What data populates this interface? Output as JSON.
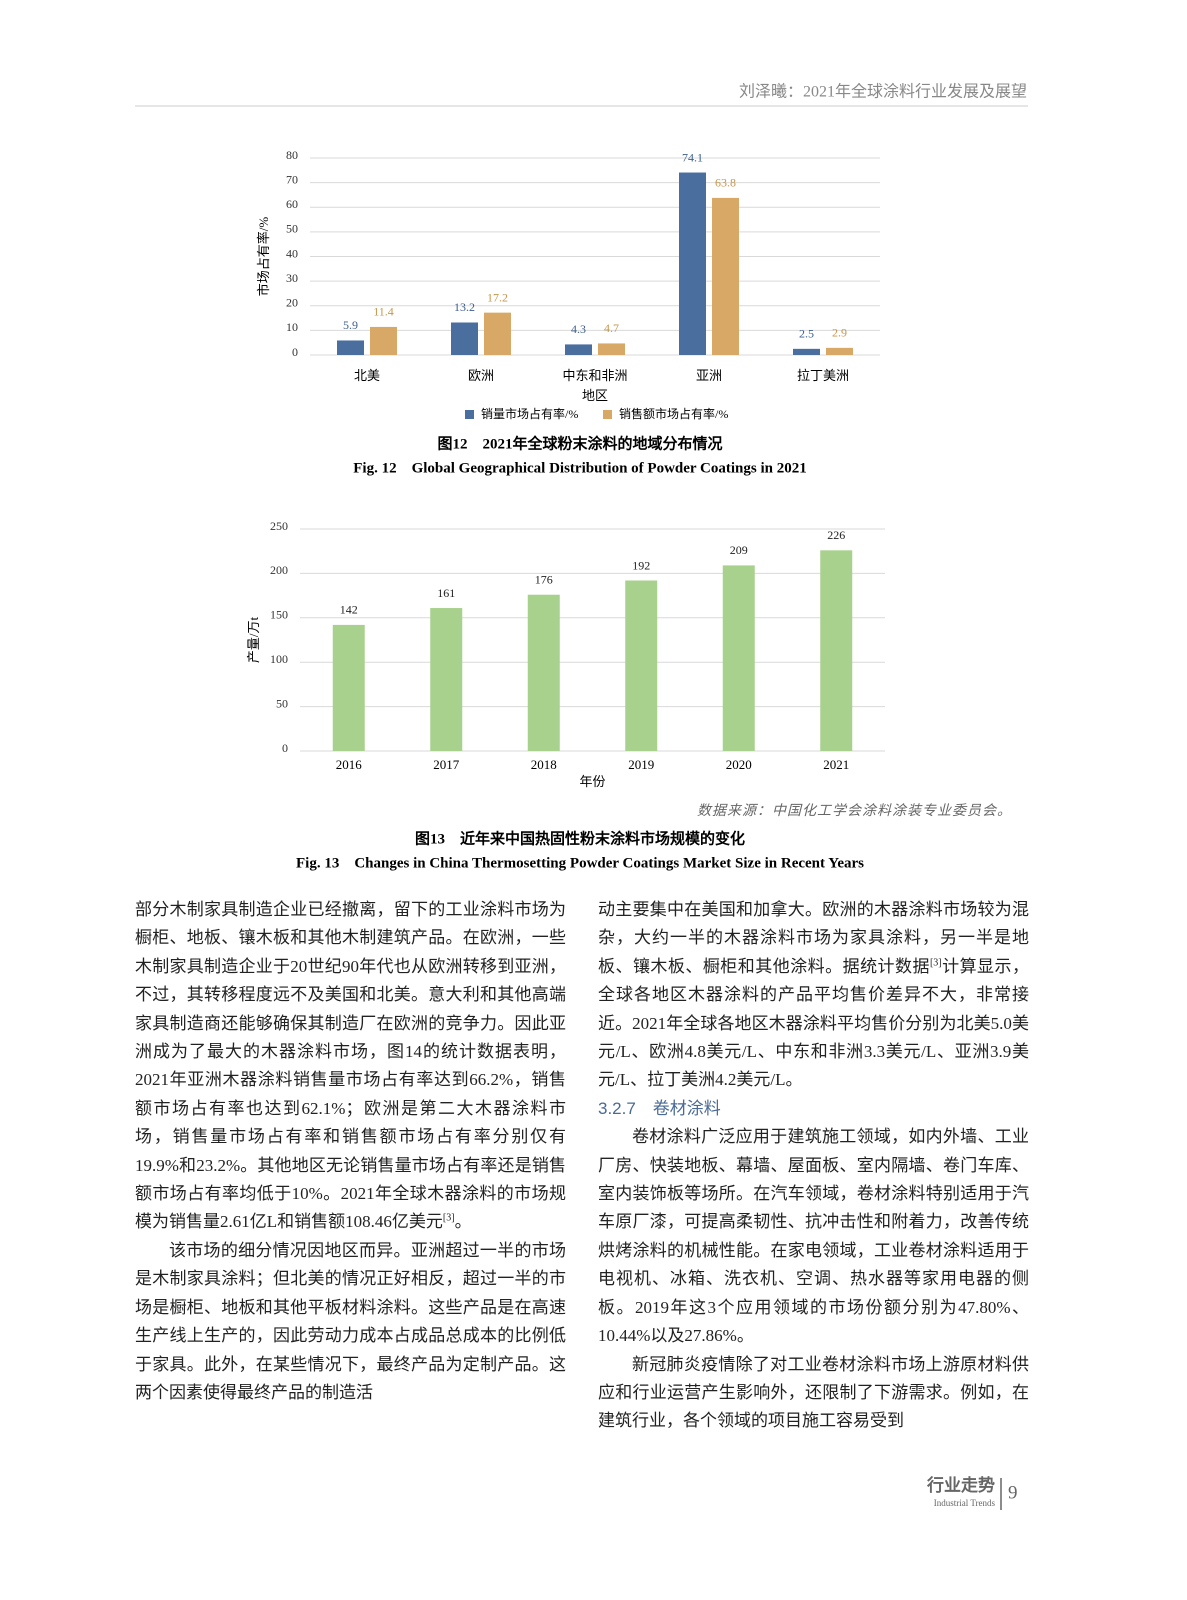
{
  "header": {
    "title": "刘泽曦：2021年全球涂料行业发展及展望"
  },
  "chart_data": [
    {
      "type": "bar",
      "title": "图12　2021年全球粉末涂料的地域分布情况",
      "subtitle": "Fig. 12　Global Geographical Distribution of Powder Coatings in 2021",
      "y_label": "市场占有率/%",
      "x_label": "地区",
      "categories": [
        "北美",
        "欧洲",
        "中东和非洲",
        "亚洲",
        "拉丁美洲"
      ],
      "series": [
        {
          "name": "销量市场占有率/%",
          "color": "#4a6f9f",
          "values": [
            5.9,
            13.2,
            4.3,
            74.1,
            2.5
          ]
        },
        {
          "name": "销售额市场占有率/%",
          "color": "#d8a866",
          "values": [
            11.4,
            17.2,
            4.7,
            63.8,
            2.9
          ]
        }
      ],
      "ylim": [
        0,
        80
      ],
      "yticks": [
        0,
        10,
        20,
        30,
        40,
        50,
        60,
        70,
        80
      ],
      "grid": true,
      "legend": "bottom"
    },
    {
      "type": "bar",
      "title": "图13　近年来中国热固性粉末涂料市场规模的变化",
      "subtitle": "Fig. 13　Changes in China Thermosetting Powder Coatings Market Size in Recent Years",
      "y_label": "产量/万t",
      "x_label": "年份",
      "source": "数据来源：中国化工学会涂料涂装专业委员会。",
      "categories": [
        "2016",
        "2017",
        "2018",
        "2019",
        "2020",
        "2021"
      ],
      "values": [
        142,
        161,
        176,
        192,
        209,
        226
      ],
      "color": "#a9d18e",
      "ylim": [
        0,
        250
      ],
      "yticks": [
        0,
        50,
        100,
        150,
        200,
        250
      ],
      "grid": true
    }
  ],
  "body": {
    "columns": [
      [
        {
          "runs": [
            "部分木制家具制造企业已经撤离，留下的工业涂料市场为橱柜、地板、镶木板和其他木制建筑产品。在欧洲，一些木制家具制造企业于20世纪90年代也从欧洲转移到亚洲，不过，其转移程度远不及美国和北美。意大利和其他高端家具制造商还能够确保其制造厂在欧洲的竞争力。因此亚洲成为了最大的木器涂料市场，图14的统计数据表明，2021年亚洲木器涂料销售量市场占有率达到66.2%，销售额市场占有率也达到62.1%；欧洲是第二大木器涂料市场，销售量市场占有率和销售额市场占有率分别仅有19.9%和23.2%。其他地区无论销售量市场占有率还是销售额市场占有率均低于10%。2021年全球木器涂料的市场规模为销售量2.61亿L和销售额108.46亿美元",
            {
              "sup": "[3]"
            },
            "。"
          ]
        },
        {
          "runs": [
            "该市场的细分情况因地区而异。亚洲超过一半的市场是木制家具涂料；但北美的情况正好相反，超过一半的市场是橱柜、地板和其他平板材料涂料。这些产品是在高速生产线上生产的，因此劳动力成本占成品总成本的比例低于家具。此外，在某些情况下，最终产品为定制产品。这两个因素使得最终产品的制造活"
          ]
        }
      ],
      [
        {
          "runs": [
            "动主要集中在美国和加拿大。欧洲的木器涂料市场较为混杂，大约一半的木器涂料市场为家具涂料，另一半是地板、镶木板、橱柜和其他涂料。据统计数据",
            {
              "sup": "[3]"
            },
            "计算显示，全球各地区木器涂料的产品平均售价差异不大，非常接近。2021年全球各地区木器涂料平均售价分别为北美5.0美元/L、欧洲4.8美元/L、中东和非洲3.3美元/L、亚洲3.9美元/L、拉丁美洲4.2美元/L。"
          ]
        },
        {
          "heading": "3.2.7　卷材涂料"
        },
        {
          "runs": [
            "卷材涂料广泛应用于建筑施工领域，如内外墙、工业厂房、快装地板、幕墙、屋面板、室内隔墙、卷门车库、室内装饰板等场所。在汽车领域，卷材涂料特别适用于汽车原厂漆，可提高柔韧性、抗冲击性和附着力，改善传统烘烤涂料的机械性能。在家电领域，工业卷材涂料适用于电视机、冰箱、洗衣机、空调、热水器等家用电器的侧板。2019年这3个应用领域的市场份额分别为47.80%、10.44%以及27.86%。"
          ]
        },
        {
          "runs": [
            "新冠肺炎疫情除了对工业卷材涂料市场上游原材料供应和行业运营产生影响外，还限制了下游需求。例如，在建筑行业，各个领域的项目施工容易受到"
          ]
        }
      ]
    ]
  },
  "footer": {
    "section": "行业走势",
    "section_en": "Industrial Trends",
    "page": "9"
  }
}
